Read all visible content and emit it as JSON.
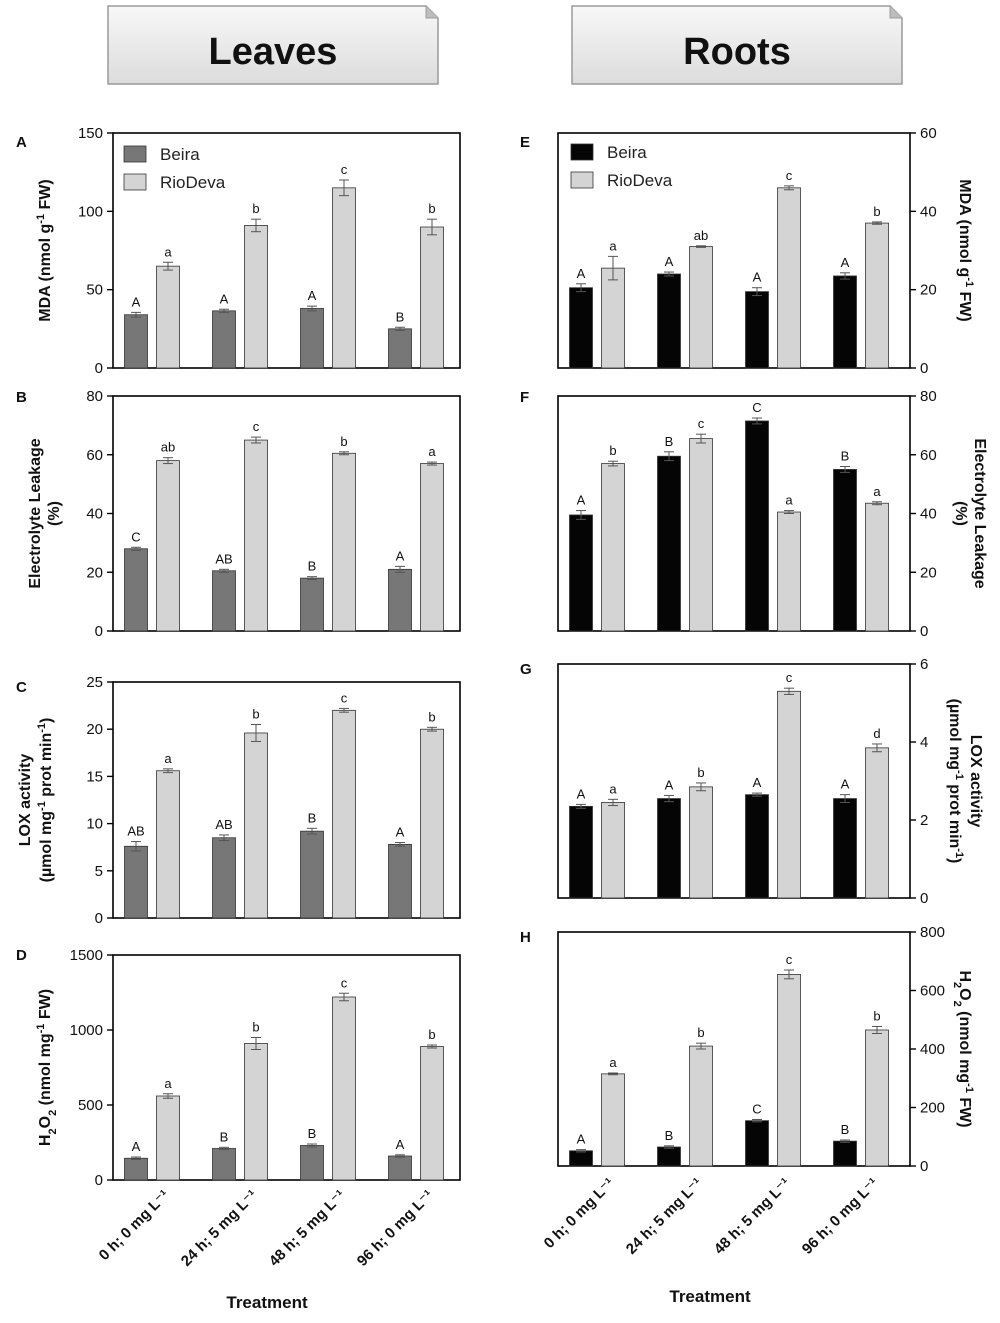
{
  "headers": {
    "left": "Leaves",
    "right": "Roots"
  },
  "x_axis": {
    "title": "Treatment",
    "categories": [
      "0 h; 0 mg L⁻¹",
      "24 h; 5 mg L⁻¹",
      "48 h; 5 mg L⁻¹",
      "96 h; 0 mg L⁻¹"
    ]
  },
  "legend": {
    "series": [
      "Beira",
      "RioDeva"
    ]
  },
  "colors": {
    "leaves_beira": "#777777",
    "roots_beira": "#050505",
    "riodeva": "#d4d4d4",
    "header_fill": "#ececec",
    "axis": "#000000",
    "error": "#555555"
  },
  "chart_data": [
    {
      "id": "A",
      "panel_label": "A",
      "type": "bar",
      "tissue": "leaves",
      "ylabel": [
        "MDA (nmol g",
        "-1",
        " FW)"
      ],
      "ylim": [
        0,
        150
      ],
      "yticks": [
        0,
        50,
        100,
        150
      ],
      "series": [
        {
          "name": "Beira",
          "values": [
            34,
            36.5,
            38,
            25
          ],
          "errors": [
            1.5,
            1,
            1.5,
            1
          ],
          "letters": [
            "A",
            "A",
            "A",
            "B"
          ]
        },
        {
          "name": "RioDeva",
          "values": [
            65,
            91,
            115,
            90
          ],
          "errors": [
            2.5,
            4,
            5,
            5
          ],
          "letters": [
            "a",
            "b",
            "c",
            "b"
          ]
        }
      ]
    },
    {
      "id": "B",
      "panel_label": "B",
      "type": "bar",
      "tissue": "leaves",
      "ylabel": [
        "Electrolyte Leakage",
        "(%)"
      ],
      "ylim": [
        0,
        80
      ],
      "yticks": [
        0,
        20,
        40,
        60,
        80
      ],
      "series": [
        {
          "name": "Beira",
          "values": [
            28,
            20.5,
            18,
            21
          ],
          "errors": [
            0.5,
            0.5,
            0.5,
            1
          ],
          "letters": [
            "C",
            "AB",
            "B",
            "A"
          ]
        },
        {
          "name": "RioDeva",
          "values": [
            58,
            65,
            60.5,
            57
          ],
          "errors": [
            1,
            1,
            0.5,
            0.5
          ],
          "letters": [
            "ab",
            "c",
            "b",
            "a"
          ]
        }
      ]
    },
    {
      "id": "C",
      "panel_label": "C",
      "type": "bar",
      "tissue": "leaves",
      "ylabel": [
        "LOX activity",
        "(µmol mg",
        "-1",
        " prot min",
        "-1",
        ")"
      ],
      "ylim": [
        0,
        25
      ],
      "yticks": [
        0,
        5,
        10,
        15,
        20,
        25
      ],
      "series": [
        {
          "name": "Beira",
          "values": [
            7.6,
            8.5,
            9.2,
            7.8
          ],
          "errors": [
            0.5,
            0.3,
            0.3,
            0.2
          ],
          "letters": [
            "AB",
            "AB",
            "B",
            "A"
          ]
        },
        {
          "name": "RioDeva",
          "values": [
            15.6,
            19.6,
            22,
            20
          ],
          "errors": [
            0.2,
            0.9,
            0.2,
            0.2
          ],
          "letters": [
            "a",
            "b",
            "c",
            "b"
          ]
        }
      ]
    },
    {
      "id": "D",
      "panel_label": "D",
      "type": "bar",
      "tissue": "leaves",
      "ylabel": [
        "H",
        "2",
        "O",
        "2",
        " (nmol mg",
        "-1",
        " FW)"
      ],
      "ylim": [
        0,
        1500
      ],
      "yticks": [
        0,
        500,
        1000,
        1500
      ],
      "series": [
        {
          "name": "Beira",
          "values": [
            145,
            210,
            230,
            160
          ],
          "errors": [
            8,
            8,
            10,
            8
          ],
          "letters": [
            "A",
            "B",
            "B",
            "A"
          ]
        },
        {
          "name": "RioDeva",
          "values": [
            560,
            910,
            1220,
            890
          ],
          "errors": [
            15,
            40,
            25,
            10
          ],
          "letters": [
            "a",
            "b",
            "c",
            "b"
          ]
        }
      ]
    },
    {
      "id": "E",
      "panel_label": "E",
      "type": "bar",
      "tissue": "roots",
      "ylabel": [
        "MDA (nmol g",
        "-1",
        " FW)"
      ],
      "ylim": [
        0,
        60
      ],
      "yticks": [
        0,
        20,
        40,
        60
      ],
      "series": [
        {
          "name": "Beira",
          "values": [
            20.5,
            24,
            19.5,
            23.5
          ],
          "errors": [
            1,
            0.5,
            1,
            0.8
          ],
          "letters": [
            "A",
            "A",
            "A",
            "A"
          ]
        },
        {
          "name": "RioDeva",
          "values": [
            25.5,
            31,
            46,
            37
          ],
          "errors": [
            3,
            0.2,
            0.5,
            0.3
          ],
          "letters": [
            "a",
            "ab",
            "c",
            "b"
          ]
        }
      ]
    },
    {
      "id": "F",
      "panel_label": "F",
      "type": "bar",
      "tissue": "roots",
      "ylabel": [
        "Electrolyte Leakage",
        "(%)"
      ],
      "ylim": [
        0,
        80
      ],
      "yticks": [
        0,
        20,
        40,
        60,
        80
      ],
      "series": [
        {
          "name": "Beira",
          "values": [
            39.5,
            59.5,
            71.5,
            55
          ],
          "errors": [
            1.5,
            1.5,
            1,
            1
          ],
          "letters": [
            "A",
            "B",
            "C",
            "B"
          ]
        },
        {
          "name": "RioDeva",
          "values": [
            57,
            65.5,
            40.5,
            43.5
          ],
          "errors": [
            0.8,
            1.5,
            0.5,
            0.5
          ],
          "letters": [
            "b",
            "c",
            "a",
            "a"
          ]
        }
      ]
    },
    {
      "id": "G",
      "panel_label": "G",
      "type": "bar",
      "tissue": "roots",
      "ylabel": [
        "LOX activity",
        "(µmol mg",
        "-1",
        " prot min",
        "-1",
        ")"
      ],
      "ylim": [
        0,
        6
      ],
      "yticks": [
        0,
        2,
        4,
        6
      ],
      "series": [
        {
          "name": "Beira",
          "values": [
            2.35,
            2.55,
            2.65,
            2.55
          ],
          "errors": [
            0.05,
            0.08,
            0.04,
            0.1
          ],
          "letters": [
            "A",
            "A",
            "A",
            "A"
          ]
        },
        {
          "name": "RioDeva",
          "values": [
            2.45,
            2.85,
            5.3,
            3.85
          ],
          "errors": [
            0.08,
            0.1,
            0.08,
            0.1
          ],
          "letters": [
            "a",
            "b",
            "c",
            "d"
          ]
        }
      ]
    },
    {
      "id": "H",
      "panel_label": "H",
      "type": "bar",
      "tissue": "roots",
      "ylabel": [
        "H",
        "2",
        "O",
        "2",
        " (nmol mg",
        "-1",
        " FW)"
      ],
      "ylim": [
        0,
        800
      ],
      "yticks": [
        0,
        200,
        400,
        600,
        800
      ],
      "series": [
        {
          "name": "Beira",
          "values": [
            52,
            65,
            155,
            85
          ],
          "errors": [
            4,
            4,
            4,
            4
          ],
          "letters": [
            "A",
            "B",
            "C",
            "B"
          ]
        },
        {
          "name": "RioDeva",
          "values": [
            315,
            410,
            655,
            465
          ],
          "errors": [
            3,
            10,
            15,
            12
          ],
          "letters": [
            "a",
            "b",
            "c",
            "b"
          ]
        }
      ]
    }
  ]
}
